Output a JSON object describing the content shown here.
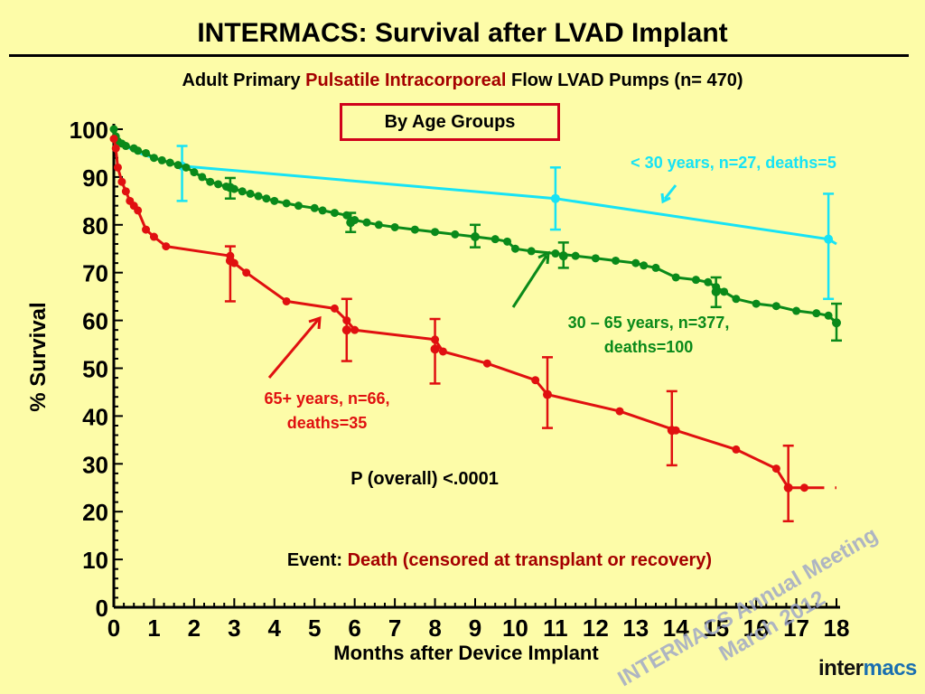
{
  "title": "INTERMACS: Survival after LVAD Implant",
  "subtitle": {
    "prefix": "Adult Primary",
    "highlight": "Pulsatile Intracorporeal",
    "suffix": "Flow LVAD Pumps (n= 470)"
  },
  "group_box_label": "By Age Groups",
  "watermark": {
    "line1": "INTERMACS Annual Meeting",
    "line2": "March 2012"
  },
  "brand": {
    "part1": "inter",
    "part2": "macs"
  },
  "colors": {
    "under30": "#17e3f5",
    "age30to65": "#0a8a1a",
    "age65plus": "#e01010",
    "event_highlight": "#a50000"
  },
  "chart_data": {
    "type": "line",
    "xlabel": "Months after Device Implant",
    "ylabel": "% Survival",
    "xlim": [
      0,
      18
    ],
    "ylim": [
      0,
      100
    ],
    "x_ticks": [
      0,
      1,
      2,
      3,
      4,
      5,
      6,
      7,
      8,
      9,
      10,
      11,
      12,
      13,
      14,
      15,
      16,
      17,
      18
    ],
    "y_ticks": [
      0,
      10,
      20,
      30,
      40,
      50,
      60,
      70,
      80,
      90,
      100
    ],
    "grid": false,
    "series": [
      {
        "key": "under30",
        "label": "< 30 years, n=27, deaths=5",
        "x": [
          0,
          0.05,
          0.15,
          0.3,
          0.5,
          0.8,
          1.2,
          1.6,
          1.7,
          11,
          17.8,
          18
        ],
        "y": [
          100,
          98,
          97,
          96.5,
          95.5,
          94.5,
          93.5,
          92.5,
          92.3,
          85.5,
          77,
          76
        ],
        "markers": false,
        "error_bars": [
          {
            "x": 1.7,
            "y": 92.3,
            "low": 85,
            "high": 96.5
          },
          {
            "x": 11,
            "y": 85.5,
            "low": 79,
            "high": 92
          },
          {
            "x": 17.8,
            "y": 77,
            "low": 64.5,
            "high": 86.5
          }
        ]
      },
      {
        "key": "age30to65",
        "label_line1": "30 – 65 years, n=377,",
        "label_line2": "deaths=100",
        "x": [
          0,
          0.05,
          0.1,
          0.2,
          0.3,
          0.5,
          0.6,
          0.8,
          1.0,
          1.2,
          1.4,
          1.6,
          1.8,
          2.0,
          2.2,
          2.4,
          2.6,
          2.8,
          3.0,
          3.2,
          3.4,
          3.6,
          3.8,
          4.0,
          4.3,
          4.6,
          5.0,
          5.2,
          5.5,
          5.8,
          6.0,
          6.3,
          6.6,
          7.0,
          7.5,
          8.0,
          8.5,
          9.0,
          9.5,
          9.8,
          10.0,
          10.4,
          11.0,
          11.5,
          12.0,
          12.5,
          13.0,
          13.2,
          13.5,
          14.0,
          14.5,
          14.8,
          15.0,
          15.2,
          15.5,
          16.0,
          16.5,
          17.0,
          17.5,
          17.8,
          18
        ],
        "y": [
          100,
          98.5,
          97.5,
          97,
          96.5,
          96,
          95.5,
          95,
          94,
          93.5,
          93,
          92.5,
          92,
          91,
          90,
          89,
          88.5,
          88,
          87.5,
          87,
          86.5,
          86,
          85.5,
          85,
          84.5,
          84,
          83.5,
          83,
          82.5,
          82,
          81,
          80.5,
          80,
          79.5,
          79,
          78.5,
          78,
          77.5,
          77,
          76.5,
          75,
          74.5,
          74,
          73.5,
          73,
          72.5,
          72,
          71.5,
          71,
          69,
          68.5,
          68,
          67,
          66,
          64.5,
          63.5,
          63,
          62,
          61.5,
          61,
          59.5
        ],
        "markers": true,
        "error_bars": [
          {
            "x": 2.9,
            "y": 87.8,
            "low": 85.5,
            "high": 89.8
          },
          {
            "x": 5.9,
            "y": 80.5,
            "low": 78.5,
            "high": 82.5
          },
          {
            "x": 9,
            "y": 77.5,
            "low": 75.3,
            "high": 80
          },
          {
            "x": 11.2,
            "y": 73.5,
            "low": 71,
            "high": 76.3
          },
          {
            "x": 15,
            "y": 66,
            "low": 62.8,
            "high": 69
          },
          {
            "x": 18,
            "y": 59.5,
            "low": 55.8,
            "high": 63.5
          }
        ]
      },
      {
        "key": "age65plus",
        "label_line1": "65+ years, n=66,",
        "label_line2": "deaths=35",
        "x": [
          0,
          0.05,
          0.1,
          0.2,
          0.3,
          0.4,
          0.5,
          0.6,
          0.8,
          1.0,
          1.3,
          2.9,
          3.0,
          3.3,
          4.3,
          5.5,
          5.8,
          6.0,
          8.0,
          8.2,
          9.3,
          10.5,
          10.8,
          12.6,
          14.0,
          15.5,
          16.5,
          16.8,
          17.2,
          17.8,
          18
        ],
        "y": [
          98,
          96,
          92,
          89,
          87,
          85,
          84,
          83,
          79,
          77.5,
          75.5,
          73.5,
          72,
          70,
          64,
          62.5,
          60,
          58,
          56,
          53.5,
          51,
          47.5,
          44.5,
          41,
          37,
          33,
          29,
          25,
          25,
          25,
          25
        ],
        "markers": true,
        "censored_dash": {
          "x_from": 17.2,
          "x_to": 18,
          "y": 25
        },
        "error_bars": [
          {
            "x": 2.9,
            "y": 72.5,
            "low": 64,
            "high": 75.5
          },
          {
            "x": 5.8,
            "y": 58,
            "low": 51.5,
            "high": 64.5
          },
          {
            "x": 8.0,
            "y": 54,
            "low": 46.8,
            "high": 60.3
          },
          {
            "x": 10.8,
            "y": 44.5,
            "low": 37.5,
            "high": 52.3
          },
          {
            "x": 13.9,
            "y": 37,
            "low": 29.7,
            "high": 45.2
          },
          {
            "x": 16.8,
            "y": 25,
            "low": 18,
            "high": 33.8
          }
        ]
      }
    ],
    "annotations": {
      "p_value": "P (overall) <.0001",
      "event_prefix": "Event:",
      "event_text": "Death (censored at transplant or recovery)"
    }
  }
}
